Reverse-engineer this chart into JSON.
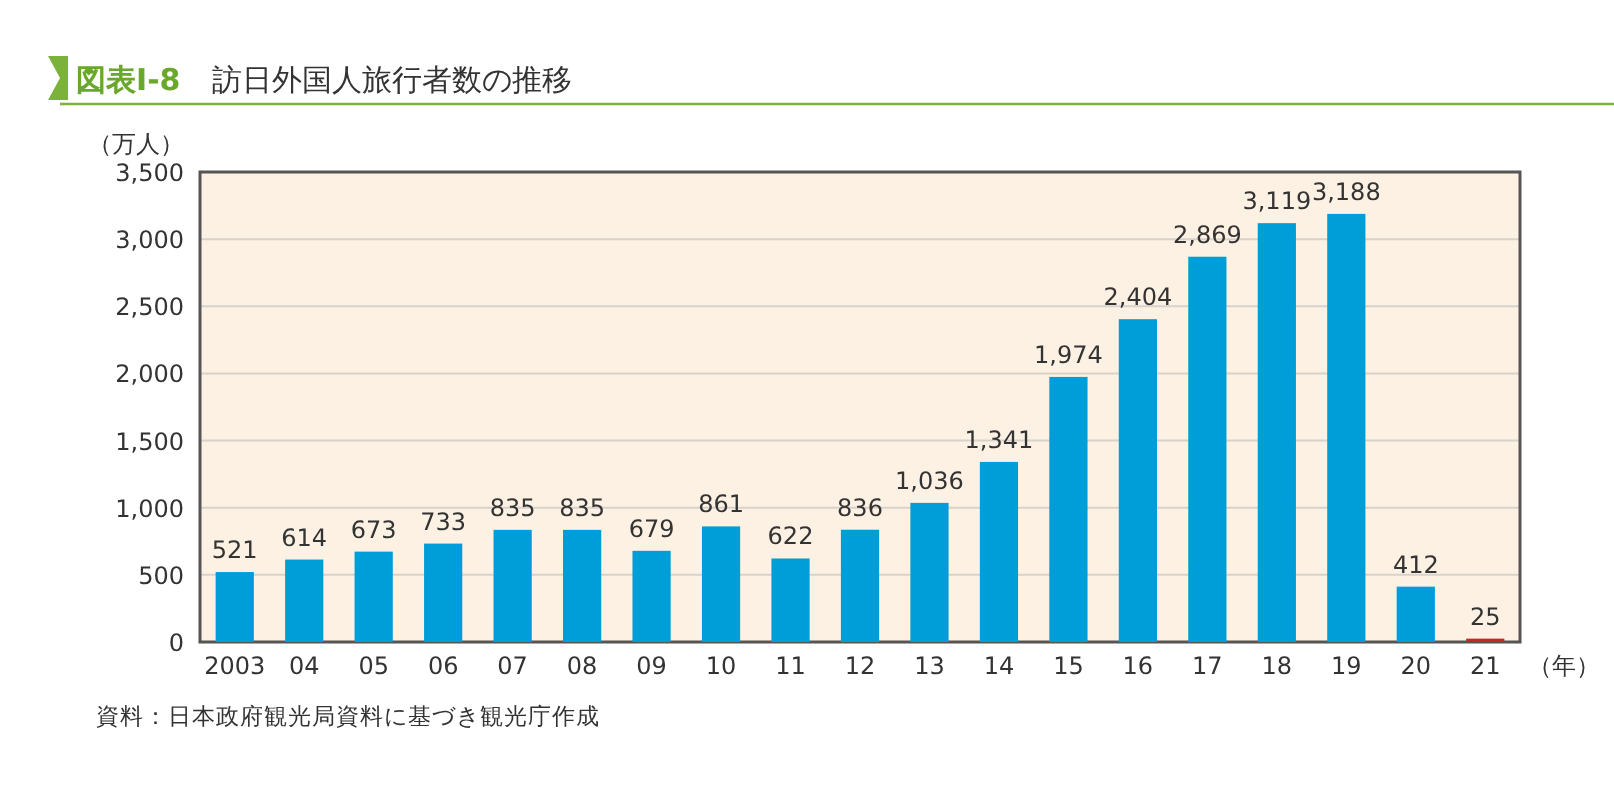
{
  "chart_data": {
    "type": "bar",
    "title": "訪日外国人旅行者数の推移",
    "ylabel": "（万人）",
    "xlabel": "（年）",
    "annotations": [
      "図表Ⅰ-8",
      "資料：日本政府観光局資料に基づき観光庁作成"
    ],
    "categories": [
      "2003",
      "04",
      "05",
      "06",
      "07",
      "08",
      "09",
      "10",
      "11",
      "12",
      "13",
      "14",
      "15",
      "16",
      "17",
      "18",
      "19",
      "20",
      "21"
    ],
    "values": [
      521,
      614,
      673,
      733,
      835,
      835,
      679,
      861,
      622,
      836,
      1036,
      1341,
      1974,
      2404,
      2869,
      3119,
      3188,
      412,
      25
    ],
    "colors": [
      "#009ed8",
      "#009ed8",
      "#009ed8",
      "#009ed8",
      "#009ed8",
      "#009ed8",
      "#009ed8",
      "#009ed8",
      "#009ed8",
      "#009ed8",
      "#009ed8",
      "#009ed8",
      "#009ed8",
      "#009ed8",
      "#009ed8",
      "#009ed8",
      "#009ed8",
      "#009ed8",
      "#c0282d"
    ],
    "ylim": [
      0,
      3500
    ],
    "yticks": [
      0,
      500,
      {
        "value": 1000,
        "label": "1,000"
      },
      {
        "value": 1500,
        "label": "1,500"
      },
      {
        "value": 2000,
        "label": "2,000"
      },
      {
        "value": 2500,
        "label": "2,500"
      },
      {
        "value": 3000,
        "label": "3,000"
      },
      {
        "value": 3500,
        "label": "3,500"
      }
    ],
    "value_labels": [
      "521",
      "614",
      "673",
      "733",
      "835",
      "835",
      "679",
      "861",
      "622",
      "836",
      "1,036",
      "1,341",
      "1,974",
      "2,404",
      "2,869",
      "3,119",
      "3,188",
      "412",
      "25"
    ],
    "grid": "y"
  }
}
